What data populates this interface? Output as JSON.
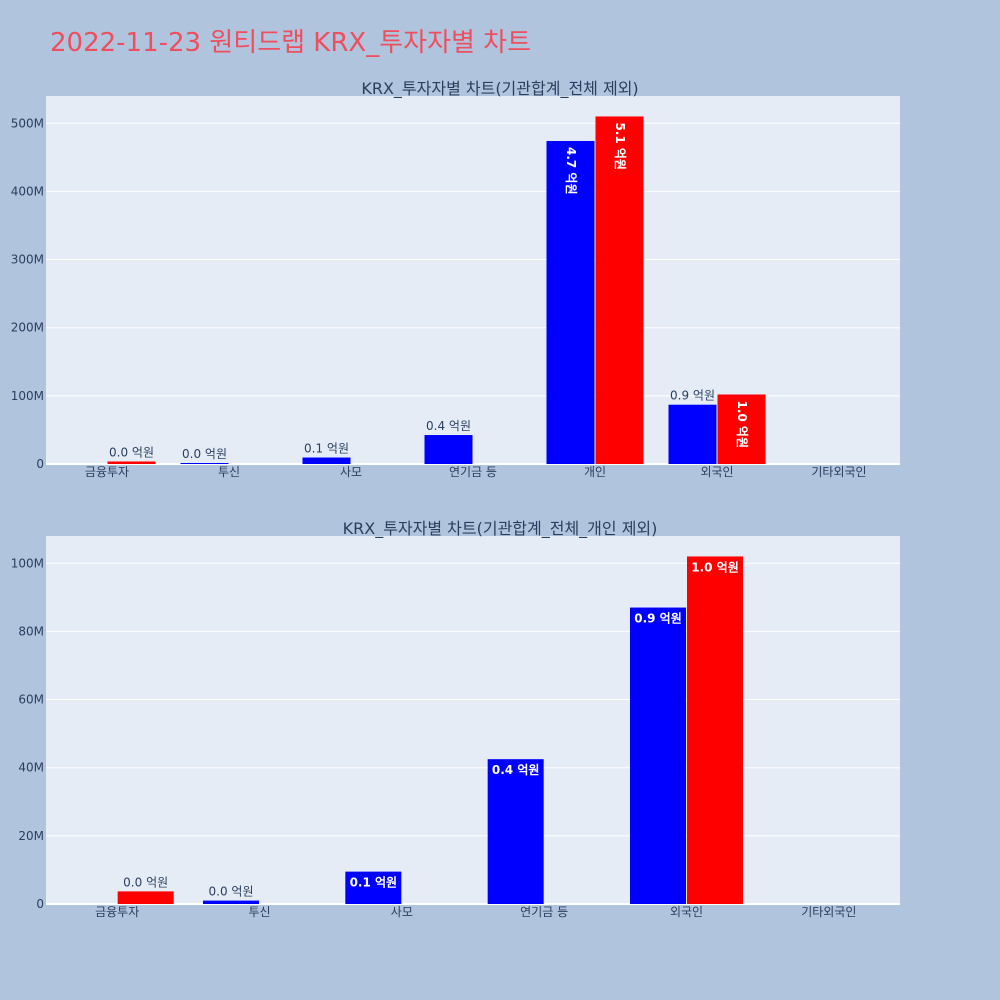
{
  "page": {
    "title": "2022-11-23 원티드랩 KRX_투자자별 차트"
  },
  "colors": {
    "background": "#b0c4de",
    "plot_background": "#e5ecf6",
    "title": "#ef4e5e",
    "series_blue": "#0000ff",
    "series_red": "#ff0000",
    "text": "#2a3f5f",
    "grid": "#ffffff"
  },
  "chart_data": [
    {
      "type": "bar",
      "title": "KRX_투자자별 차트(기관합계_전체 제외)",
      "categories": [
        "금융투자",
        "투신",
        "사모",
        "연기금 등",
        "개인",
        "외국인",
        "기타외국인"
      ],
      "ylim": [
        0,
        540000000
      ],
      "yticks": [
        0,
        100000000,
        200000000,
        300000000,
        400000000,
        500000000
      ],
      "ytick_labels": [
        "0",
        "100M",
        "200M",
        "300M",
        "400M",
        "500M"
      ],
      "grid": true,
      "series": [
        {
          "color": "#0000ff",
          "values": [
            null,
            1000000,
            9500000,
            42500000,
            474000000,
            87000000,
            null
          ],
          "labels": [
            "",
            "0.0 억원",
            "0.1 억원",
            "0.4 억원",
            "4.7 억원",
            "0.9 억원",
            ""
          ]
        },
        {
          "color": "#ff0000",
          "values": [
            3700000,
            null,
            null,
            null,
            510000000,
            102000000,
            null
          ],
          "labels": [
            "0.0 억원",
            "",
            "",
            "",
            "5.1 억원",
            "1.0 억원",
            ""
          ]
        }
      ]
    },
    {
      "type": "bar",
      "title": "KRX_투자자별 차트(기관합계_전체_개인 제외)",
      "categories": [
        "금융투자",
        "투신",
        "사모",
        "연기금 등",
        "외국인",
        "기타외국인"
      ],
      "ylim": [
        0,
        108000000
      ],
      "yticks": [
        0,
        20000000,
        40000000,
        60000000,
        80000000,
        100000000
      ],
      "ytick_labels": [
        "0",
        "20M",
        "40M",
        "60M",
        "80M",
        "100M"
      ],
      "grid": true,
      "series": [
        {
          "color": "#0000ff",
          "values": [
            null,
            1000000,
            9500000,
            42500000,
            87000000,
            null
          ],
          "labels": [
            "",
            "0.0 억원",
            "0.1 억원",
            "0.4 억원",
            "0.9 억원",
            ""
          ]
        },
        {
          "color": "#ff0000",
          "values": [
            3700000,
            null,
            null,
            null,
            102000000,
            null
          ],
          "labels": [
            "0.0 억원",
            "",
            "",
            "",
            "1.0 억원",
            ""
          ]
        }
      ]
    }
  ]
}
